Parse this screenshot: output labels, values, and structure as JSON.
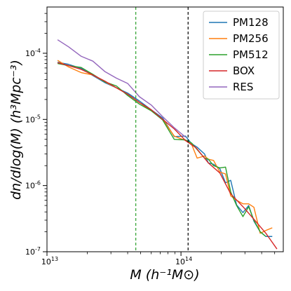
{
  "chart_data": {
    "type": "line",
    "title": "",
    "xlabel": "M (h⁻¹M⊙)",
    "ylabel": "dn/dlog(M) (h³Mpc⁻³)",
    "xscale": "log",
    "yscale": "log",
    "xlim": [
      10000000000000.0,
      580000000000000.0
    ],
    "ylim": [
      1e-07,
      0.0005
    ],
    "grid": false,
    "legend_position": "top-right",
    "x_ticks": [
      {
        "value": 10000000000000.0,
        "label": "10^13"
      },
      {
        "value": 100000000000000.0,
        "label": "10^14"
      }
    ],
    "y_ticks": [
      {
        "value": 1e-07,
        "label": "10^-7"
      },
      {
        "value": 1e-06,
        "label": "10^-6"
      },
      {
        "value": 1e-05,
        "label": "10^-5"
      },
      {
        "value": 0.0001,
        "label": "10^-4"
      }
    ],
    "vlines": [
      {
        "x": 46000000000000.0,
        "color": "#2ca02c",
        "style": "dashed"
      },
      {
        "x": 113000000000000.0,
        "color": "#000000",
        "style": "dashed"
      }
    ],
    "series": [
      {
        "name": "PM128",
        "color": "#1f77b4",
        "x": [
          12000000000000.0,
          14500000000000.0,
          18000000000000.0,
          22000000000000.0,
          27000000000000.0,
          33000000000000.0,
          40000000000000.0,
          49000000000000.0,
          60000000000000.0,
          73000000000000.0,
          89000000000000.0,
          108000000000000.0,
          120000000000000.0,
          132000000000000.0,
          150000000000000.0,
          160000000000000.0,
          175000000000000.0,
          195000000000000.0,
          215000000000000.0,
          235000000000000.0,
          260000000000000.0,
          290000000000000.0,
          320000000000000.0,
          350000000000000.0,
          390000000000000.0,
          430000000000000.0,
          480000000000000.0
        ],
        "y": [
          7.3e-05,
          6.8e-05,
          5.9e-05,
          4.6e-05,
          3.6e-05,
          3e-05,
          2.5e-05,
          1.9e-05,
          1.4e-05,
          1.05e-05,
          5.5e-06,
          5.6e-06,
          4.3e-06,
          3.8e-06,
          3e-06,
          2.2e-06,
          2.1e-06,
          1.8e-06,
          1.1e-06,
          1.2e-06,
          5.1e-07,
          3.9e-07,
          5e-07,
          2.9e-07,
          2e-07,
          1.7e-07,
          1.7e-07
        ]
      },
      {
        "name": "PM256",
        "color": "#ff7f0e",
        "x": [
          12000000000000.0,
          14500000000000.0,
          18000000000000.0,
          22000000000000.0,
          27000000000000.0,
          33000000000000.0,
          40000000000000.0,
          49000000000000.0,
          60000000000000.0,
          73000000000000.0,
          89000000000000.0,
          108000000000000.0,
          120000000000000.0,
          132000000000000.0,
          150000000000000.0,
          160000000000000.0,
          175000000000000.0,
          195000000000000.0,
          215000000000000.0,
          235000000000000.0,
          260000000000000.0,
          290000000000000.0,
          320000000000000.0,
          350000000000000.0,
          390000000000000.0,
          430000000000000.0,
          480000000000000.0
        ],
        "y": [
          7.8e-05,
          6.2e-05,
          5.1e-05,
          4.7e-05,
          3.7e-05,
          3e-05,
          2.4e-05,
          1.8e-05,
          1.35e-05,
          1e-05,
          5.6e-06,
          4.8e-06,
          4.2e-06,
          2.6e-06,
          2.8e-06,
          2.5e-06,
          2.4e-06,
          1.6e-06,
          1.5e-06,
          7e-07,
          6e-07,
          5.3e-07,
          5.3e-07,
          4.7e-07,
          1.9e-07,
          2.1e-07,
          2.3e-07
        ]
      },
      {
        "name": "PM512",
        "color": "#2ca02c",
        "x": [
          12000000000000.0,
          14500000000000.0,
          18000000000000.0,
          22000000000000.0,
          27000000000000.0,
          33000000000000.0,
          40000000000000.0,
          49000000000000.0,
          60000000000000.0,
          73000000000000.0,
          89000000000000.0,
          108000000000000.0,
          120000000000000.0,
          132000000000000.0,
          150000000000000.0,
          160000000000000.0,
          175000000000000.0,
          195000000000000.0,
          215000000000000.0,
          235000000000000.0,
          260000000000000.0,
          290000000000000.0,
          320000000000000.0,
          350000000000000.0,
          390000000000000.0,
          430000000000000.0
        ],
        "y": [
          7e-05,
          6.5e-05,
          6.1e-05,
          4.8e-05,
          3.7e-05,
          3.2e-05,
          2.3e-05,
          1.7e-05,
          1.35e-05,
          9.8e-06,
          5e-06,
          4.9e-06,
          4.4e-06,
          3.5e-06,
          2.6e-06,
          2.5e-06,
          2e-06,
          1.85e-06,
          1.9e-06,
          8e-07,
          5e-07,
          3.4e-07,
          4.8e-07,
          3e-07,
          2e-07,
          1.7e-07
        ]
      },
      {
        "name": "BOX",
        "color": "#d62728",
        "x": [
          12000000000000.0,
          14500000000000.0,
          18000000000000.0,
          22000000000000.0,
          27000000000000.0,
          33000000000000.0,
          40000000000000.0,
          49000000000000.0,
          60000000000000.0,
          73000000000000.0,
          89000000000000.0,
          108000000000000.0,
          130000000000000.0,
          160000000000000.0,
          195000000000000.0,
          235000000000000.0,
          290000000000000.0,
          350000000000000.0,
          430000000000000.0,
          520000000000000.0
        ],
        "y": [
          7.2e-05,
          6.5e-05,
          5.7e-05,
          4.7e-05,
          3.8e-05,
          3e-05,
          2.4e-05,
          1.8e-05,
          1.4e-05,
          1e-05,
          7.2e-06,
          4.8e-06,
          3.7e-06,
          2.2e-06,
          1.55e-06,
          7.5e-07,
          4.8e-07,
          3.1e-07,
          1.9e-07,
          1.1e-07
        ]
      },
      {
        "name": "RES",
        "color": "#9467bd",
        "x": [
          12000000000000.0,
          14500000000000.0,
          18000000000000.0,
          22000000000000.0,
          27000000000000.0,
          33000000000000.0,
          40000000000000.0,
          49000000000000.0,
          60000000000000.0,
          73000000000000.0,
          89000000000000.0,
          108000000000000.0
        ],
        "y": [
          0.00016,
          0.000125,
          9e-05,
          7.6e-05,
          5.3e-05,
          4.2e-05,
          3.5e-05,
          2.2e-05,
          1.65e-05,
          1.1e-05,
          7.5e-06,
          5.4e-06
        ]
      }
    ]
  }
}
